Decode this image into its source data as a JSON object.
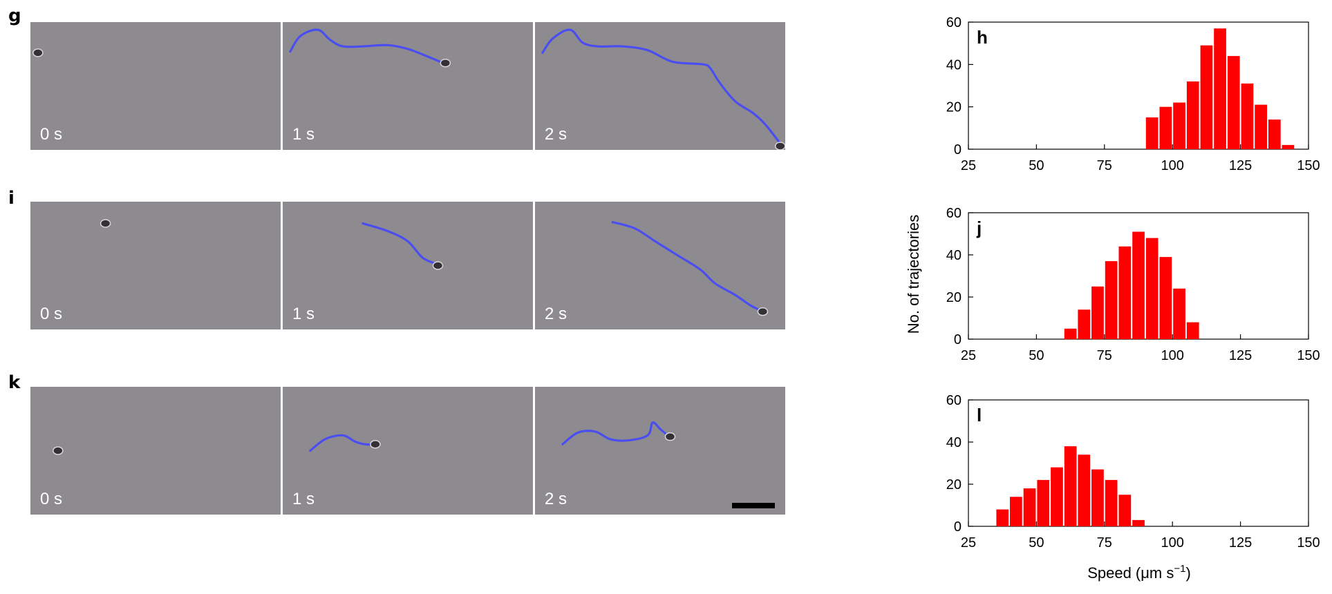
{
  "microscopy": {
    "rows": [
      {
        "panel": "g",
        "frames": [
          {
            "time_label": "0 s",
            "trajectory": [],
            "cell": [
              0.03,
              0.24
            ]
          },
          {
            "time_label": "1 s",
            "trajectory": [
              [
                0.03,
                0.23
              ],
              [
                0.07,
                0.11
              ],
              [
                0.14,
                0.06
              ],
              [
                0.19,
                0.14
              ],
              [
                0.24,
                0.19
              ],
              [
                0.32,
                0.19
              ],
              [
                0.42,
                0.18
              ],
              [
                0.5,
                0.21
              ],
              [
                0.58,
                0.27
              ],
              [
                0.64,
                0.32
              ]
            ],
            "cell": [
              0.65,
              0.32
            ]
          },
          {
            "time_label": "2 s",
            "trajectory": [
              [
                0.03,
                0.24
              ],
              [
                0.07,
                0.13
              ],
              [
                0.14,
                0.06
              ],
              [
                0.19,
                0.16
              ],
              [
                0.25,
                0.19
              ],
              [
                0.35,
                0.19
              ],
              [
                0.45,
                0.22
              ],
              [
                0.55,
                0.31
              ],
              [
                0.67,
                0.33
              ],
              [
                0.7,
                0.36
              ],
              [
                0.74,
                0.48
              ],
              [
                0.8,
                0.62
              ],
              [
                0.87,
                0.71
              ],
              [
                0.92,
                0.8
              ],
              [
                0.98,
                0.95
              ]
            ],
            "cell": [
              0.98,
              0.97
            ]
          }
        ]
      },
      {
        "panel": "i",
        "frames": [
          {
            "time_label": "0 s",
            "trajectory": [],
            "cell": [
              0.3,
              0.17
            ]
          },
          {
            "time_label": "1 s",
            "trajectory": [
              [
                0.32,
                0.17
              ],
              [
                0.42,
                0.23
              ],
              [
                0.5,
                0.31
              ],
              [
                0.56,
                0.44
              ],
              [
                0.62,
                0.49
              ]
            ],
            "cell": [
              0.62,
              0.5
            ]
          },
          {
            "time_label": "2 s",
            "trajectory": [
              [
                0.31,
                0.16
              ],
              [
                0.4,
                0.21
              ],
              [
                0.48,
                0.31
              ],
              [
                0.57,
                0.42
              ],
              [
                0.66,
                0.53
              ],
              [
                0.72,
                0.64
              ],
              [
                0.8,
                0.73
              ],
              [
                0.86,
                0.81
              ],
              [
                0.9,
                0.85
              ]
            ],
            "cell": [
              0.91,
              0.86
            ]
          }
        ]
      },
      {
        "panel": "k",
        "frames": [
          {
            "time_label": "0 s",
            "trajectory": [],
            "cell": [
              0.11,
              0.5
            ]
          },
          {
            "time_label": "1 s",
            "trajectory": [
              [
                0.11,
                0.5
              ],
              [
                0.17,
                0.41
              ],
              [
                0.24,
                0.38
              ],
              [
                0.29,
                0.43
              ],
              [
                0.33,
                0.45
              ],
              [
                0.36,
                0.45
              ]
            ],
            "cell": [
              0.37,
              0.45
            ]
          },
          {
            "time_label": "2 s",
            "trajectory": [
              [
                0.11,
                0.45
              ],
              [
                0.17,
                0.36
              ],
              [
                0.24,
                0.35
              ],
              [
                0.3,
                0.41
              ],
              [
                0.37,
                0.42
              ],
              [
                0.45,
                0.38
              ],
              [
                0.47,
                0.28
              ],
              [
                0.5,
                0.33
              ],
              [
                0.53,
                0.38
              ]
            ],
            "cell": [
              0.54,
              0.39
            ]
          }
        ]
      }
    ]
  },
  "colors": {
    "frame_bg": "#8e8b90",
    "trajectory": "#4a4ef0",
    "cell": "#333036",
    "bars": "#ff0000"
  },
  "chart_data": [
    {
      "panel": "h",
      "type": "bar",
      "bin_width": 5,
      "x": [
        95,
        100,
        105,
        110,
        115,
        120,
        125,
        130,
        135,
        140,
        145
      ],
      "values": [
        15,
        20,
        22,
        32,
        49,
        57,
        44,
        31,
        21,
        14,
        2
      ],
      "xlim": [
        25,
        150
      ],
      "ylim": [
        0,
        60
      ],
      "xticks": [
        "25",
        "50",
        "75",
        "100",
        "125",
        "150"
      ],
      "yticks": [
        "0",
        "20",
        "40",
        "60"
      ]
    },
    {
      "panel": "j",
      "type": "bar",
      "bin_width": 5,
      "x": [
        65,
        70,
        75,
        80,
        85,
        90,
        95,
        100,
        105,
        110
      ],
      "values": [
        5,
        14,
        25,
        37,
        44,
        51,
        48,
        39,
        24,
        8
      ],
      "xlim": [
        25,
        150
      ],
      "ylim": [
        0,
        60
      ],
      "xticks": [
        "25",
        "50",
        "75",
        "100",
        "125",
        "150"
      ],
      "yticks": [
        "0",
        "20",
        "40",
        "60"
      ]
    },
    {
      "panel": "l",
      "type": "bar",
      "bin_width": 5,
      "x": [
        40,
        45,
        50,
        55,
        60,
        65,
        70,
        75,
        80,
        85,
        90
      ],
      "values": [
        8,
        14,
        18,
        22,
        28,
        38,
        34,
        27,
        22,
        15,
        3
      ],
      "xlim": [
        25,
        150
      ],
      "ylim": [
        0,
        60
      ],
      "xticks": [
        "25",
        "50",
        "75",
        "100",
        "125",
        "150"
      ],
      "yticks": [
        "0",
        "20",
        "40",
        "60"
      ]
    }
  ],
  "axes": {
    "ylabel": "No. of trajectories",
    "xlabel_main": "Speed (μm s",
    "xlabel_exp": "−1",
    "xlabel_end": ")"
  }
}
